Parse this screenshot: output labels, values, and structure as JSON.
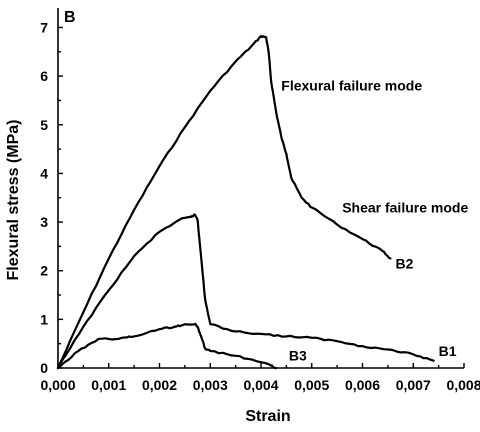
{
  "chart_data": {
    "type": "line",
    "panel_label": "B",
    "xlabel": "Strain",
    "ylabel": "Flexural stress (MPa)",
    "xlim": [
      0,
      0.008
    ],
    "ylim": [
      0,
      7.4
    ],
    "x_ticks": [
      0,
      0.001,
      0.002,
      0.003,
      0.004,
      0.005,
      0.006,
      0.007,
      0.008
    ],
    "x_tick_labels": [
      "0,000",
      "0,001",
      "0,002",
      "0,003",
      "0,004",
      "0,005",
      "0,006",
      "0,007",
      "0,008"
    ],
    "y_ticks": [
      0,
      1,
      2,
      3,
      4,
      5,
      6,
      7
    ],
    "y_tick_labels": [
      "0",
      "1",
      "2",
      "3",
      "4",
      "5",
      "6",
      "7"
    ],
    "grid": false,
    "series": [
      {
        "name": "B2",
        "x": [
          0,
          0.0005,
          0.001,
          0.0015,
          0.002,
          0.0025,
          0.003,
          0.0035,
          0.0038,
          0.004,
          0.0041,
          0.00415,
          0.0042,
          0.0043,
          0.0044,
          0.0045,
          0.0046,
          0.0048,
          0.005,
          0.0055,
          0.006,
          0.0064,
          0.00655
        ],
        "y": [
          0,
          1.15,
          2.25,
          3.25,
          4.15,
          4.95,
          5.7,
          6.3,
          6.6,
          6.82,
          6.8,
          6.5,
          5.9,
          5.25,
          4.75,
          4.4,
          3.9,
          3.5,
          3.3,
          2.95,
          2.65,
          2.4,
          2.25
        ]
      },
      {
        "name": "B1",
        "x": [
          0,
          0.0005,
          0.001,
          0.0015,
          0.002,
          0.0024,
          0.0026,
          0.0027,
          0.00275,
          0.0028,
          0.0029,
          0.003,
          0.0035,
          0.004,
          0.0045,
          0.005,
          0.0055,
          0.006,
          0.0065,
          0.007,
          0.0074
        ],
        "y": [
          0,
          0.85,
          1.6,
          2.3,
          2.8,
          3.05,
          3.1,
          3.15,
          3.05,
          2.5,
          1.4,
          0.9,
          0.75,
          0.7,
          0.65,
          0.62,
          0.55,
          0.45,
          0.38,
          0.28,
          0.15
        ]
      },
      {
        "name": "B3",
        "x": [
          0,
          0.0004,
          0.0008,
          0.0012,
          0.0015,
          0.002,
          0.0023,
          0.0025,
          0.0027,
          0.00275,
          0.0028,
          0.0029,
          0.003,
          0.0035,
          0.004,
          0.0042,
          0.0043
        ],
        "y": [
          0,
          0.35,
          0.6,
          0.6,
          0.65,
          0.8,
          0.85,
          0.9,
          0.9,
          0.85,
          0.7,
          0.4,
          0.35,
          0.25,
          0.12,
          0.05,
          0
        ]
      }
    ],
    "annotations": [
      {
        "text": "Flexural failure mode",
        "x": 0.0044,
        "y": 5.7
      },
      {
        "text": "Shear failure mode",
        "x": 0.0056,
        "y": 3.2
      },
      {
        "text": "B2",
        "x": 0.00665,
        "y": 2.05
      },
      {
        "text": "B1",
        "x": 0.0075,
        "y": 0.25
      },
      {
        "text": "B3",
        "x": 0.00455,
        "y": 0.15
      }
    ]
  }
}
